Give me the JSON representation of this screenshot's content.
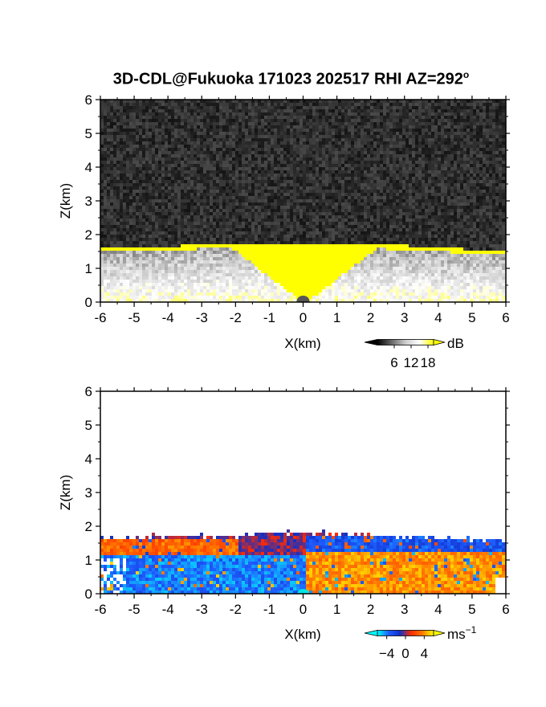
{
  "title": "3D-CDL@Fukuoka 171023 202517 RHI AZ=292",
  "title_superscript": "o",
  "chart_data": [
    {
      "type": "heatmap",
      "panel": "backscatter",
      "xlabel": "X(km)",
      "ylabel": "Z(km)",
      "xlim": [
        -6,
        6
      ],
      "ylim": [
        0,
        6
      ],
      "xticks": [
        "-6",
        "-5",
        "-4",
        "-3",
        "-2",
        "-1",
        "0",
        "1",
        "2",
        "3",
        "4",
        "5",
        "6"
      ],
      "yticks": [
        "0",
        "1",
        "2",
        "3",
        "4",
        "5",
        "6"
      ],
      "colorbar": {
        "unit": "dB",
        "ticks": [
          "6",
          "12",
          "18"
        ],
        "tick_values": [
          6,
          12,
          18
        ],
        "range": [
          0,
          20
        ],
        "colors": [
          "#000000",
          "#666666",
          "#cccccc",
          "#ffffff",
          "#ffff00"
        ]
      },
      "layer_top_km": {
        "x": [
          -6,
          -5,
          -3,
          -1,
          0,
          1,
          3,
          5,
          6
        ],
        "z": [
          1.65,
          1.65,
          1.75,
          1.8,
          1.8,
          1.78,
          1.72,
          1.6,
          1.55
        ]
      },
      "saturated_cone": {
        "apex": [
          0,
          0
        ],
        "top_x_range": [
          -2.3,
          2.3
        ],
        "top_z": 1.75
      }
    },
    {
      "type": "heatmap",
      "panel": "radial_velocity",
      "xlabel": "X(km)",
      "ylabel": "Z(km)",
      "xlim": [
        -6,
        6
      ],
      "ylim": [
        0,
        6
      ],
      "xticks": [
        "-6",
        "-5",
        "-4",
        "-3",
        "-2",
        "-1",
        "0",
        "1",
        "2",
        "3",
        "4",
        "5",
        "6"
      ],
      "yticks": [
        "0",
        "1",
        "2",
        "3",
        "4",
        "5",
        "6"
      ],
      "colorbar": {
        "unit": "ms",
        "unit_superscript": "−1",
        "ticks": [
          "−4",
          "0",
          "4"
        ],
        "tick_values": [
          -4,
          0,
          4
        ],
        "range": [
          -6,
          6
        ],
        "colors": [
          "#00ffff",
          "#1f5cff",
          "#1030c8",
          "#ff2a00",
          "#ff7a00",
          "#ffff00"
        ]
      },
      "layer_top_km": {
        "x": [
          -6,
          -4,
          -2,
          -1,
          0,
          2,
          4,
          6
        ],
        "z": [
          1.7,
          1.75,
          1.75,
          1.85,
          1.85,
          1.8,
          1.7,
          1.6
        ]
      },
      "velocity_regions": [
        {
          "x_range": [
            -6,
            -2
          ],
          "z_range": [
            1.2,
            1.7
          ],
          "value_ms": 3
        },
        {
          "x_range": [
            -6,
            0
          ],
          "z_range": [
            0,
            1.2
          ],
          "value_ms": -4
        },
        {
          "x_range": [
            0,
            6
          ],
          "z_range": [
            1.3,
            1.8
          ],
          "value_ms": -3
        },
        {
          "x_range": [
            0,
            6
          ],
          "z_range": [
            0,
            1.3
          ],
          "value_ms": 4
        }
      ]
    }
  ]
}
